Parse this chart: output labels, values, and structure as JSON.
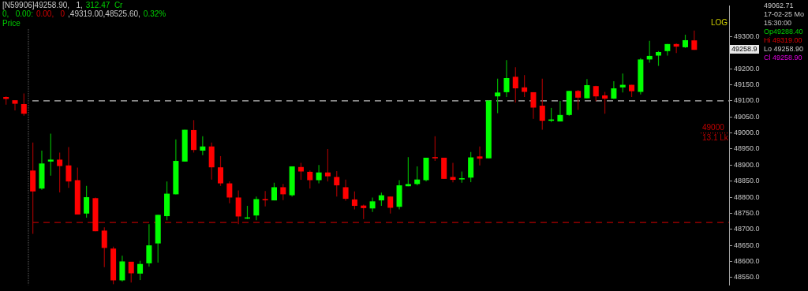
{
  "chart_data": {
    "type": "candlestick",
    "categories": [
      null,
      null,
      null,
      null,
      null,
      null,
      null,
      null,
      null,
      null,
      null,
      null,
      null,
      null,
      null,
      null,
      null,
      null,
      null,
      null,
      null,
      null,
      null,
      null,
      null,
      null,
      null,
      null,
      null,
      null,
      null,
      null,
      null,
      null,
      null,
      null,
      null,
      null,
      null,
      null,
      null,
      null,
      null,
      null,
      null,
      null,
      null,
      null,
      null,
      null,
      null,
      null,
      null,
      null,
      null,
      null,
      null,
      null,
      null,
      null,
      null,
      null,
      null,
      null,
      null,
      null,
      null,
      null,
      null,
      null,
      null,
      null,
      null,
      null,
      null,
      null,
      null,
      null
    ],
    "ohlc": [
      [
        49112,
        49114,
        49088,
        49106
      ],
      [
        49102,
        49102,
        49070,
        49091
      ],
      [
        49090,
        49123,
        49054,
        49060
      ],
      [
        48883,
        48970,
        48686,
        48818
      ],
      [
        48827,
        48945,
        48823,
        48905
      ],
      [
        48911,
        48998,
        48867,
        48917
      ],
      [
        48917,
        48939,
        48815,
        48897
      ],
      [
        48899,
        48956,
        48829,
        48849
      ],
      [
        48853,
        48892,
        48746,
        48746
      ],
      [
        48749,
        48835,
        48736,
        48800
      ],
      [
        48797,
        48799,
        48694,
        48694
      ],
      [
        48696,
        48706,
        48582,
        48642
      ],
      [
        48640,
        48646,
        48529,
        48541
      ],
      [
        48541,
        48618,
        48537,
        48600
      ],
      [
        48599,
        48599,
        48534,
        48563
      ],
      [
        48562,
        48602,
        48542,
        48592
      ],
      [
        48594,
        48716,
        48584,
        48650
      ],
      [
        48656,
        48745,
        48596,
        48745
      ],
      [
        48741,
        48849,
        48728,
        48811
      ],
      [
        48809,
        48980,
        48809,
        48913
      ],
      [
        48911,
        49010,
        48911,
        49010
      ],
      [
        49009,
        49040,
        48939,
        48947
      ],
      [
        48945,
        48990,
        48931,
        48958
      ],
      [
        48958,
        48970,
        48855,
        48893
      ],
      [
        48893,
        48928,
        48835,
        48843
      ],
      [
        48843,
        48849,
        48781,
        48799
      ],
      [
        48799,
        48821,
        48716,
        48740
      ],
      [
        48734,
        48773,
        48732,
        48737
      ],
      [
        48743,
        48802,
        48728,
        48794
      ],
      [
        48794,
        48819,
        48771,
        48793
      ],
      [
        48790,
        48845,
        48790,
        48831
      ],
      [
        48831,
        48841,
        48791,
        48809
      ],
      [
        48806,
        48896,
        48802,
        48896
      ],
      [
        48894,
        48907,
        48854,
        48880
      ],
      [
        48879,
        48883,
        48827,
        48853
      ],
      [
        48853,
        48900,
        48843,
        48877
      ],
      [
        48877,
        48950,
        48849,
        48865
      ],
      [
        48863,
        48881,
        48802,
        48837
      ],
      [
        48831,
        48855,
        48789,
        48795
      ],
      [
        48793,
        48818,
        48762,
        48773
      ],
      [
        48774,
        48777,
        48732,
        48766
      ],
      [
        48765,
        48799,
        48754,
        48787
      ],
      [
        48790,
        48814,
        48773,
        48806
      ],
      [
        48802,
        48802,
        48749,
        48767
      ],
      [
        48770,
        48853,
        48762,
        48837
      ],
      [
        48834,
        48925,
        48834,
        48841
      ],
      [
        48841,
        48896,
        48837,
        48855
      ],
      [
        48853,
        48923,
        48849,
        48923
      ],
      [
        48925,
        48990,
        48913,
        48921
      ],
      [
        48923,
        48923,
        48857,
        48857
      ],
      [
        48863,
        48907,
        48846,
        48854
      ],
      [
        48857,
        48880,
        48845,
        48859
      ],
      [
        48861,
        48941,
        48847,
        48924
      ],
      [
        48927,
        48958,
        48899,
        48920
      ],
      [
        48921,
        49101,
        48921,
        49101
      ],
      [
        49114,
        49169,
        49062,
        49126
      ],
      [
        49127,
        49227,
        49112,
        49171
      ],
      [
        49175,
        49205,
        49095,
        49139
      ],
      [
        49142,
        49180,
        49112,
        49128
      ],
      [
        49127,
        49127,
        49044,
        49079
      ],
      [
        49085,
        49169,
        49010,
        49038
      ],
      [
        49038,
        49078,
        49034,
        49042
      ],
      [
        49036,
        49100,
        49036,
        49056
      ],
      [
        49056,
        49131,
        49054,
        49131
      ],
      [
        49131,
        49134,
        49072,
        49110
      ],
      [
        49108,
        49168,
        49108,
        49149
      ],
      [
        49146,
        49147,
        49099,
        49114
      ],
      [
        49117,
        49128,
        49060,
        49107
      ],
      [
        49107,
        49161,
        49106,
        49139
      ],
      [
        49142,
        49185,
        49126,
        49150
      ],
      [
        49150,
        49150,
        49112,
        49130
      ],
      [
        49128,
        49233,
        49120,
        49229
      ],
      [
        49229,
        49287,
        49219,
        49240
      ],
      [
        49241,
        49255,
        49209,
        49252
      ],
      [
        49255,
        49277,
        49241,
        49277
      ],
      [
        49277,
        49279,
        49249,
        49269
      ],
      [
        49267,
        49306,
        49265,
        49289
      ],
      [
        49288.4,
        49319,
        49258.9,
        49258.9
      ]
    ],
    "ylim": [
      48526,
      49396
    ],
    "yticks": [
      {
        "value": 48550,
        "label": "48550.0"
      },
      {
        "value": 48600,
        "label": "48600.0"
      },
      {
        "value": 48650,
        "label": "48650.0"
      },
      {
        "value": 48700,
        "label": "48700.0"
      },
      {
        "value": 48750,
        "label": "48750.0"
      },
      {
        "value": 48800,
        "label": "48800.0"
      },
      {
        "value": 48850,
        "label": "48850.0"
      },
      {
        "value": 48900,
        "label": "48900.0"
      },
      {
        "value": 48950,
        "label": "48950.0"
      },
      {
        "value": 49000,
        "label": "49000.0"
      },
      {
        "value": 49050,
        "label": "49050.0"
      },
      {
        "value": 49100,
        "label": "49100.0"
      },
      {
        "value": 49150,
        "label": "49150.0"
      },
      {
        "value": 49200,
        "label": "49200.0"
      },
      {
        "value": 49300,
        "label": "49300.0"
      }
    ],
    "ref_lines": [
      {
        "axis": "y",
        "value": 49100,
        "color": "#c0c0c0",
        "line_style": "dashed"
      },
      {
        "axis": "y",
        "value": 48721,
        "color": "#b00000",
        "line_style": "dashed"
      },
      {
        "axis": "y",
        "value": 49000,
        "label": "49000\n13.1 Lk",
        "color": "#c00000",
        "line_style": "dotted"
      }
    ],
    "annotations": [
      "[N59906]49258.90,   1,",
      "312.47  Cr",
      "0,   0.00:",
      "0.00,   0",
      ",49319.00,48525.60,",
      "0.32%",
      "Price",
      "LOG",
      "49062.71",
      "17-02-25 Mo",
      "15:30:00",
      "Op49288.40",
      "Hi 49319.00",
      "Lo 49258.90",
      "Cl 49258.90",
      "49258.9"
    ],
    "grid": false,
    "legend": false
  }
}
